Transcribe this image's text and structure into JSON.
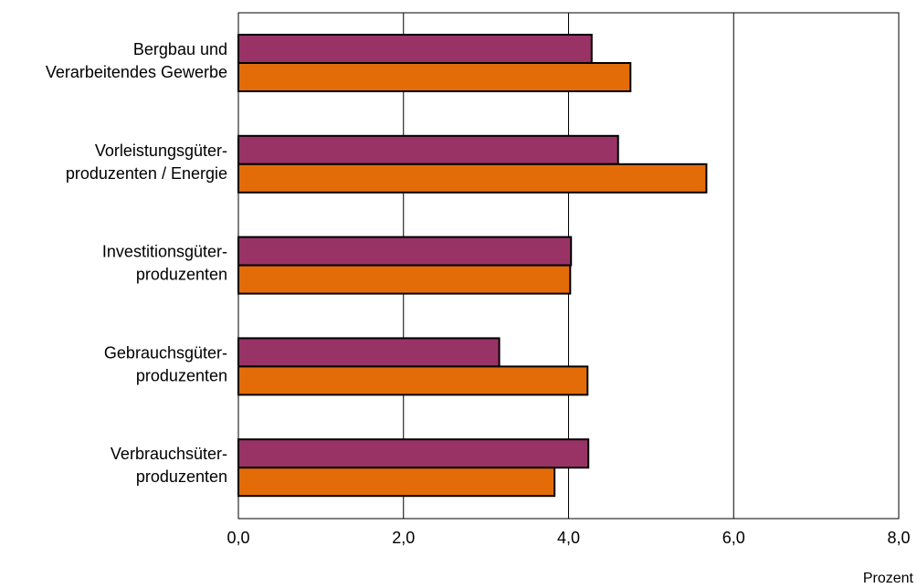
{
  "chart_data": {
    "type": "bar",
    "orientation": "horizontal",
    "categories": [
      [
        "Bergbau und",
        "Verarbeitendes Gewerbe"
      ],
      [
        "Vorleistungsgüter-",
        "produzenten /  Energie"
      ],
      [
        "Investitionsgüter-",
        "produzenten"
      ],
      [
        "Gebrauchsgüter-",
        "produzenten"
      ],
      [
        "Verbrauchsüter-",
        "produzenten"
      ]
    ],
    "series": [
      {
        "values": [
          4.28,
          4.6,
          4.03,
          3.16,
          4.24
        ],
        "color": "#993366"
      },
      {
        "values": [
          4.75,
          5.67,
          4.02,
          4.23,
          3.83
        ],
        "color": "#E36C09"
      }
    ],
    "xlim": [
      0,
      8
    ],
    "xticks": [
      "0,0",
      "2,0",
      "4,0",
      "6,0",
      "8,0"
    ],
    "xunit": "Prozent",
    "grid": true,
    "legend": "none"
  }
}
